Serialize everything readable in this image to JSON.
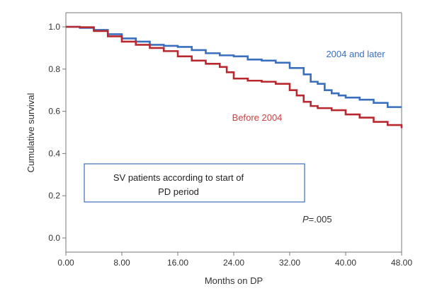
{
  "chart_data": {
    "type": "line",
    "title": "",
    "xlabel": "Months on DP",
    "ylabel": "Cumulative survival",
    "xlim": [
      0,
      48
    ],
    "ylim": [
      0,
      1.0
    ],
    "x_ticks": [
      "0.00",
      "8.00",
      "16.00",
      "24.00",
      "32.00",
      "40.00",
      "48.00"
    ],
    "y_ticks": [
      "0.0",
      "0.2",
      "0.4",
      "0.6",
      "0.8",
      "1.0"
    ],
    "grid": false,
    "legend": "inline labels",
    "series": [
      {
        "name": "2004 and later",
        "color": "#3a6fbf",
        "points": [
          [
            0,
            1.0
          ],
          [
            2,
            0.995
          ],
          [
            4,
            0.985
          ],
          [
            6,
            0.965
          ],
          [
            8,
            0.945
          ],
          [
            10,
            0.93
          ],
          [
            12,
            0.915
          ],
          [
            14,
            0.91
          ],
          [
            16,
            0.905
          ],
          [
            18,
            0.89
          ],
          [
            20,
            0.875
          ],
          [
            22,
            0.865
          ],
          [
            24,
            0.86
          ],
          [
            26,
            0.845
          ],
          [
            28,
            0.84
          ],
          [
            30,
            0.83
          ],
          [
            32,
            0.805
          ],
          [
            34,
            0.775
          ],
          [
            35,
            0.74
          ],
          [
            36,
            0.73
          ],
          [
            37,
            0.7
          ],
          [
            38,
            0.685
          ],
          [
            39,
            0.675
          ],
          [
            40,
            0.665
          ],
          [
            42,
            0.655
          ],
          [
            44,
            0.64
          ],
          [
            46,
            0.62
          ],
          [
            48,
            0.62
          ]
        ]
      },
      {
        "name": "Before 2004",
        "color": "#b8282e",
        "points": [
          [
            0,
            1.0
          ],
          [
            2,
            0.998
          ],
          [
            4,
            0.98
          ],
          [
            6,
            0.955
          ],
          [
            8,
            0.93
          ],
          [
            10,
            0.915
          ],
          [
            12,
            0.9
          ],
          [
            14,
            0.885
          ],
          [
            16,
            0.86
          ],
          [
            18,
            0.84
          ],
          [
            20,
            0.825
          ],
          [
            22,
            0.81
          ],
          [
            23,
            0.785
          ],
          [
            24,
            0.755
          ],
          [
            26,
            0.745
          ],
          [
            28,
            0.74
          ],
          [
            30,
            0.73
          ],
          [
            32,
            0.7
          ],
          [
            33,
            0.675
          ],
          [
            34,
            0.645
          ],
          [
            35,
            0.625
          ],
          [
            36,
            0.615
          ],
          [
            38,
            0.605
          ],
          [
            40,
            0.585
          ],
          [
            42,
            0.57
          ],
          [
            44,
            0.55
          ],
          [
            46,
            0.535
          ],
          [
            48,
            0.52
          ]
        ]
      }
    ],
    "annotations": {
      "box_text_line1": "SV patients according to start of",
      "box_text_line2": "PD period",
      "p_prefix": "P",
      "p_value": "=.005"
    }
  }
}
